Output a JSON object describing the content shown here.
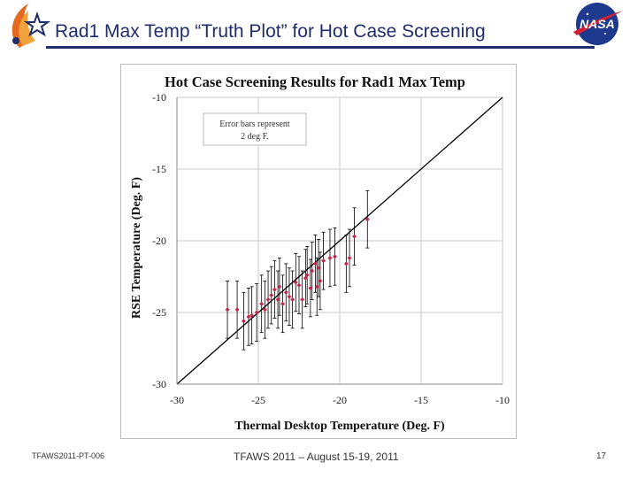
{
  "slide": {
    "title": "Rad1 Max Temp “Truth Plot” for Hot Case Screening",
    "logo_right_text": "NASA",
    "footer_left": "TFAWS2011-PT-006",
    "footer_center": "TFAWS 2011 – August 15-19, 2011",
    "footer_right": "17"
  },
  "colors": {
    "title": "#1f2d6b",
    "point": "#c0284a",
    "errorbar": "#000000",
    "grid": "#c8c8c8"
  },
  "chart_data": {
    "type": "scatter",
    "title": "Hot Case Screening Results for Rad1 Max Temp",
    "xlabel": "Thermal Desktop Temperature (Deg. F)",
    "ylabel": "RSE Temperature (Deg. F)",
    "xlim": [
      -30,
      -10
    ],
    "ylim": [
      -30,
      -10
    ],
    "x_ticks": [
      -30,
      -25,
      -20,
      -15,
      -10
    ],
    "y_ticks": [
      -10,
      -15,
      -20,
      -25,
      -30
    ],
    "x_tick_labels": [
      "-30",
      "-25",
      "-20",
      "-15",
      "-10"
    ],
    "y_tick_labels": [
      "-10",
      "-15",
      "-20",
      "-25",
      "-30"
    ],
    "legend_note": [
      "Error bars represent",
      "2 deg F."
    ],
    "error_bar_half_width": 2,
    "reference_line": {
      "label": "y = x",
      "from": [
        -30,
        -30
      ],
      "to": [
        -10,
        -10
      ]
    },
    "series": [
      {
        "name": "Rad1 Max Temp",
        "points": [
          {
            "x": -26.9,
            "y": -24.8
          },
          {
            "x": -26.3,
            "y": -24.8
          },
          {
            "x": -25.9,
            "y": -25.6
          },
          {
            "x": -25.6,
            "y": -25.3
          },
          {
            "x": -25.4,
            "y": -25.2
          },
          {
            "x": -25.1,
            "y": -25.0
          },
          {
            "x": -24.8,
            "y": -24.4
          },
          {
            "x": -24.6,
            "y": -24.8
          },
          {
            "x": -24.4,
            "y": -24.1
          },
          {
            "x": -24.2,
            "y": -23.8
          },
          {
            "x": -24.0,
            "y": -23.4
          },
          {
            "x": -23.8,
            "y": -24.1
          },
          {
            "x": -23.7,
            "y": -23.2
          },
          {
            "x": -23.5,
            "y": -24.4
          },
          {
            "x": -23.3,
            "y": -23.6
          },
          {
            "x": -23.1,
            "y": -23.9
          },
          {
            "x": -22.9,
            "y": -24.1
          },
          {
            "x": -22.7,
            "y": -22.9
          },
          {
            "x": -22.5,
            "y": -23.1
          },
          {
            "x": -22.3,
            "y": -24.1
          },
          {
            "x": -22.1,
            "y": -22.6
          },
          {
            "x": -22.0,
            "y": -22.4
          },
          {
            "x": -21.8,
            "y": -23.3
          },
          {
            "x": -21.7,
            "y": -22.1
          },
          {
            "x": -21.5,
            "y": -21.6
          },
          {
            "x": -21.4,
            "y": -23.2
          },
          {
            "x": -21.3,
            "y": -21.9
          },
          {
            "x": -21.2,
            "y": -22.8
          },
          {
            "x": -21.0,
            "y": -21.4
          },
          {
            "x": -20.6,
            "y": -21.2
          },
          {
            "x": -20.3,
            "y": -21.1
          },
          {
            "x": -19.6,
            "y": -21.6
          },
          {
            "x": -19.4,
            "y": -21.2
          },
          {
            "x": -19.1,
            "y": -19.7
          },
          {
            "x": -18.3,
            "y": -18.5
          }
        ]
      }
    ]
  }
}
